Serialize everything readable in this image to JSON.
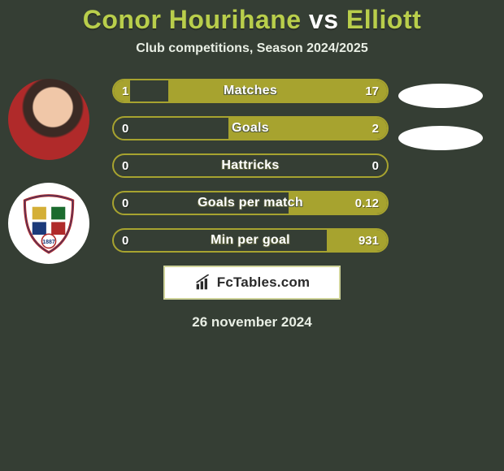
{
  "title": {
    "player1": "Conor Hourihane",
    "vs": "vs",
    "player2": "Elliott",
    "player1_color": "#b9ce4b",
    "player2_color": "#b9ce4b"
  },
  "subtitle": "Club competitions, Season 2024/2025",
  "style": {
    "bar_border_color": "#a7a32f",
    "fill_left_color": "#a7a32f",
    "fill_right_color": "#a7a32f",
    "track_bg": "transparent"
  },
  "bars": [
    {
      "label": "Matches",
      "left": "1",
      "right": "17",
      "left_pct": 6,
      "right_pct": 80
    },
    {
      "label": "Goals",
      "left": "0",
      "right": "2",
      "left_pct": 0,
      "right_pct": 58
    },
    {
      "label": "Hattricks",
      "left": "0",
      "right": "0",
      "left_pct": 0,
      "right_pct": 0
    },
    {
      "label": "Goals per match",
      "left": "0",
      "right": "0.12",
      "left_pct": 0,
      "right_pct": 36
    },
    {
      "label": "Min per goal",
      "left": "0",
      "right": "931",
      "left_pct": 0,
      "right_pct": 22
    }
  ],
  "brand": "FcTables.com",
  "date": "26 november 2024",
  "crest_year": "1887"
}
